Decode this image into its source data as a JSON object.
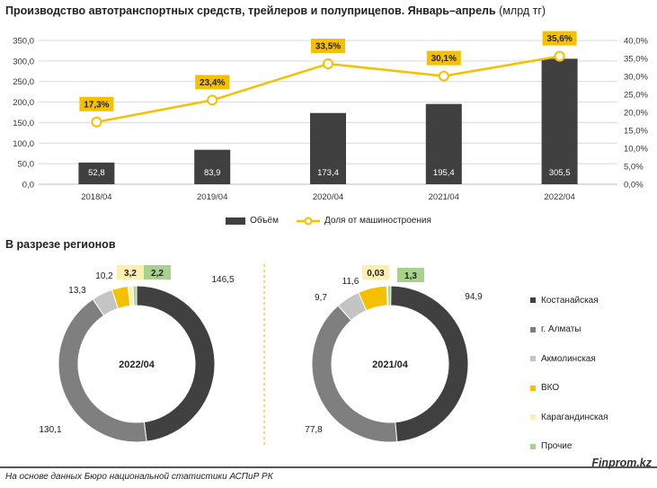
{
  "header": {
    "title": "Производство автотранспортных средств, трейлеров и полуприцепов. Январь–апрель",
    "unit": "(млрд тг)"
  },
  "colors": {
    "bar": "#404040",
    "line": "#f5c000",
    "label_fill": "#f5c000",
    "gridline": "#d9d9d9",
    "kostanay": "#404040",
    "almaty": "#7f7f7f",
    "akmola": "#c4c4c4",
    "vko": "#f5c000",
    "karaganda": "#fcefb0",
    "other": "#a9d18e"
  },
  "chart_data": [
    {
      "type": "bar",
      "categories": [
        "2018/04",
        "2019/04",
        "2020/04",
        "2021/04",
        "2022/04"
      ],
      "series": [
        {
          "name": "Объём",
          "values": [
            52.8,
            83.9,
            173.4,
            195.4,
            305.5
          ],
          "value_labels": [
            "52,8",
            "83,9",
            "173,4",
            "195,4",
            "305,5"
          ]
        },
        {
          "name": "Доля от машиностроения",
          "type": "line",
          "axis": "right",
          "values": [
            17.3,
            23.4,
            33.5,
            30.1,
            35.6
          ],
          "value_labels": [
            "17,3%",
            "23,4%",
            "33,5%",
            "30,1%",
            "35,6%"
          ]
        }
      ],
      "ylim": [
        0,
        350
      ],
      "y_ticks": [
        "0,0",
        "50,0",
        "100,0",
        "150,0",
        "200,0",
        "250,0",
        "300,0",
        "350,0"
      ],
      "y2lim": [
        0,
        40
      ],
      "y2_ticks": [
        "0,0%",
        "5,0%",
        "10,0%",
        "15,0%",
        "20,0%",
        "25,0%",
        "30,0%",
        "35,0%",
        "40,0%"
      ],
      "grid": true,
      "legend": "bottom"
    },
    {
      "type": "pie",
      "title": "В разрезе регионов",
      "center_label": "2022/04",
      "categories": [
        "Костанайская",
        "г. Алматы",
        "Акмолинская",
        "ВКО",
        "Карагандинская",
        "Прочие"
      ],
      "values": [
        146.5,
        130.1,
        13.3,
        10.2,
        3.2,
        2.2
      ],
      "value_labels": [
        "146,5",
        "130,1",
        "13,3",
        "10,2",
        "3,2",
        "2,2"
      ]
    },
    {
      "type": "pie",
      "center_label": "2021/04",
      "categories": [
        "Костанайская",
        "г. Алматы",
        "Акмолинская",
        "ВКО",
        "Карагандинская",
        "Прочие"
      ],
      "values": [
        94.9,
        77.8,
        9.7,
        11.6,
        0.03,
        1.3
      ],
      "value_labels": [
        "94,9",
        "77,8",
        "9,7",
        "11,6",
        "0,03",
        "1,3"
      ],
      "legend": "right"
    }
  ],
  "footer": {
    "source": "На основе данных Бюро национальной статистики АСПиР РК",
    "brand": "Finprom.kz"
  }
}
